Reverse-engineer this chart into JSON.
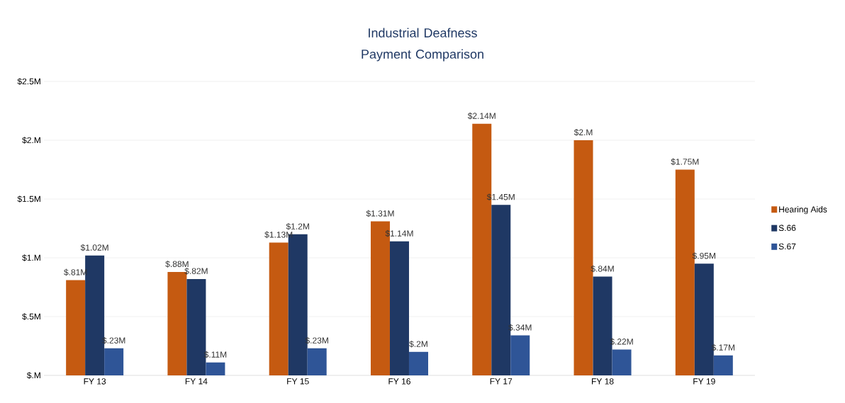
{
  "chart_data": {
    "type": "bar",
    "title": "Industrial Deafness Payment Comparison",
    "categories": [
      "FY 13",
      "FY 14",
      "FY 15",
      "FY 16",
      "FY 17",
      "FY 18",
      "FY 19"
    ],
    "series": [
      {
        "name": "Hearing Aids",
        "color": "#c55a11",
        "values": [
          0.81,
          0.88,
          1.13,
          1.31,
          2.14,
          2.0,
          1.75
        ],
        "value_labels": [
          "$.81M",
          "$.88M",
          "$1.13M",
          "$1.31M",
          "$2.14M",
          "$2.M",
          "$1.75M"
        ]
      },
      {
        "name": "S.66",
        "color": "#1f3864",
        "values": [
          1.02,
          0.82,
          1.2,
          1.14,
          1.45,
          0.84,
          0.95
        ],
        "value_labels": [
          "$1.02M",
          "$.82M",
          "$1.2M",
          "$1.14M",
          "$1.45M",
          "$.84M",
          "$.95M"
        ]
      },
      {
        "name": "S.67",
        "color": "#2f5597",
        "values": [
          0.23,
          0.11,
          0.23,
          0.2,
          0.34,
          0.22,
          0.17
        ],
        "value_labels": [
          "$.23M",
          "$.11M",
          "$.23M",
          "$.2M",
          "$.34M",
          "$.22M",
          "$.17M"
        ]
      }
    ],
    "ylim": [
      0,
      2.5
    ],
    "yticks": [
      {
        "value": 0,
        "label": "$.M"
      },
      {
        "value": 0.5,
        "label": "$.5M"
      },
      {
        "value": 1,
        "label": "$1.M"
      },
      {
        "value": 1.5,
        "label": "$1.5M"
      },
      {
        "value": 2,
        "label": "$2.M"
      },
      {
        "value": 2.5,
        "label": "$2.5M"
      }
    ],
    "grid": "y",
    "legend": "right"
  }
}
